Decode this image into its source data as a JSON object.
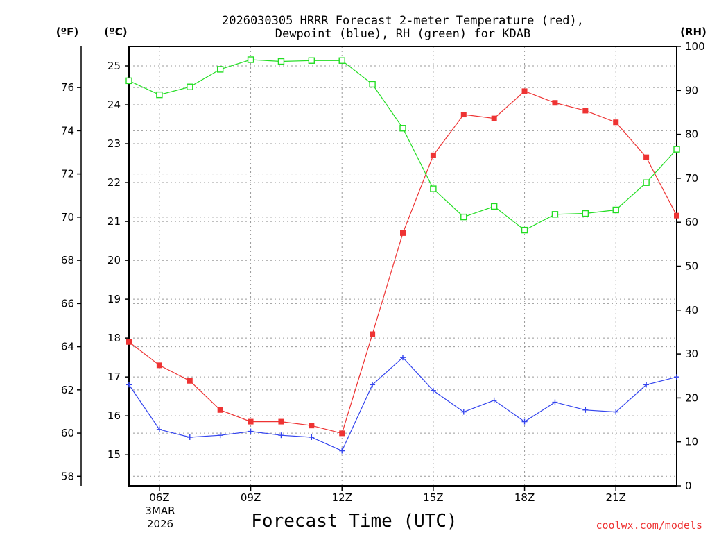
{
  "chart_data": {
    "type": "line",
    "title_line1": "2026030305 HRRR Forecast 2-meter Temperature (red),",
    "title_line2": "Dewpoint (blue), RH (green) for KDAB",
    "xlabel": "Forecast Time (UTC)",
    "credit": "coolwx.com/models",
    "units": {
      "fahrenheit": "(ºF)",
      "celsius": "(ºC)",
      "rh": "(RH)"
    },
    "x_hours": [
      5,
      6,
      7,
      8,
      9,
      10,
      11,
      12,
      13,
      14,
      15,
      16,
      17,
      18,
      19,
      20,
      21,
      22,
      23
    ],
    "xlim": [
      5,
      23
    ],
    "x_ticks": [
      {
        "hour": 6,
        "label": "06Z"
      },
      {
        "hour": 9,
        "label": "09Z"
      },
      {
        "hour": 12,
        "label": "12Z"
      },
      {
        "hour": 15,
        "label": "15Z"
      },
      {
        "hour": 18,
        "label": "18Z"
      },
      {
        "hour": 21,
        "label": "21Z"
      }
    ],
    "date_label_1": "3MAR",
    "date_label_2": "2026",
    "celsius_axis": {
      "range": [
        14.2,
        25.5
      ],
      "ticks": [
        "15",
        "16",
        "17",
        "18",
        "19",
        "20",
        "21",
        "22",
        "23",
        "24",
        "25"
      ]
    },
    "fahrenheit_ticks": [
      "58",
      "60",
      "62",
      "64",
      "66",
      "68",
      "70",
      "72",
      "74",
      "76"
    ],
    "rh_axis": {
      "range": [
        0,
        100
      ],
      "ticks": [
        "0",
        "10",
        "20",
        "30",
        "40",
        "50",
        "60",
        "70",
        "80",
        "90",
        "100"
      ]
    },
    "series": [
      {
        "name": "Temperature",
        "unit": "°C",
        "color": "#ee3333",
        "marker": "filled-square",
        "values": [
          17.9,
          17.3,
          16.9,
          16.15,
          15.85,
          15.85,
          15.75,
          15.55,
          18.1,
          20.7,
          22.7,
          23.75,
          23.65,
          24.35,
          24.05,
          23.85,
          23.55,
          22.65,
          21.15
        ]
      },
      {
        "name": "Dewpoint",
        "unit": "°C",
        "color": "#3344ee",
        "marker": "plus",
        "values": [
          16.8,
          15.65,
          15.45,
          15.5,
          15.6,
          15.5,
          15.45,
          15.1,
          16.8,
          17.5,
          16.65,
          16.1,
          16.4,
          15.85,
          16.35,
          16.15,
          16.1,
          16.8,
          17.0
        ]
      },
      {
        "name": "Relative Humidity",
        "unit": "%",
        "color": "#22dd22",
        "marker": "open-square",
        "values": [
          92.2,
          89.0,
          90.8,
          94.8,
          97.0,
          96.6,
          96.8,
          96.8,
          91.4,
          81.4,
          67.6,
          61.2,
          63.6,
          58.2,
          61.8,
          62.0,
          62.8,
          69.0,
          76.6
        ]
      }
    ]
  }
}
